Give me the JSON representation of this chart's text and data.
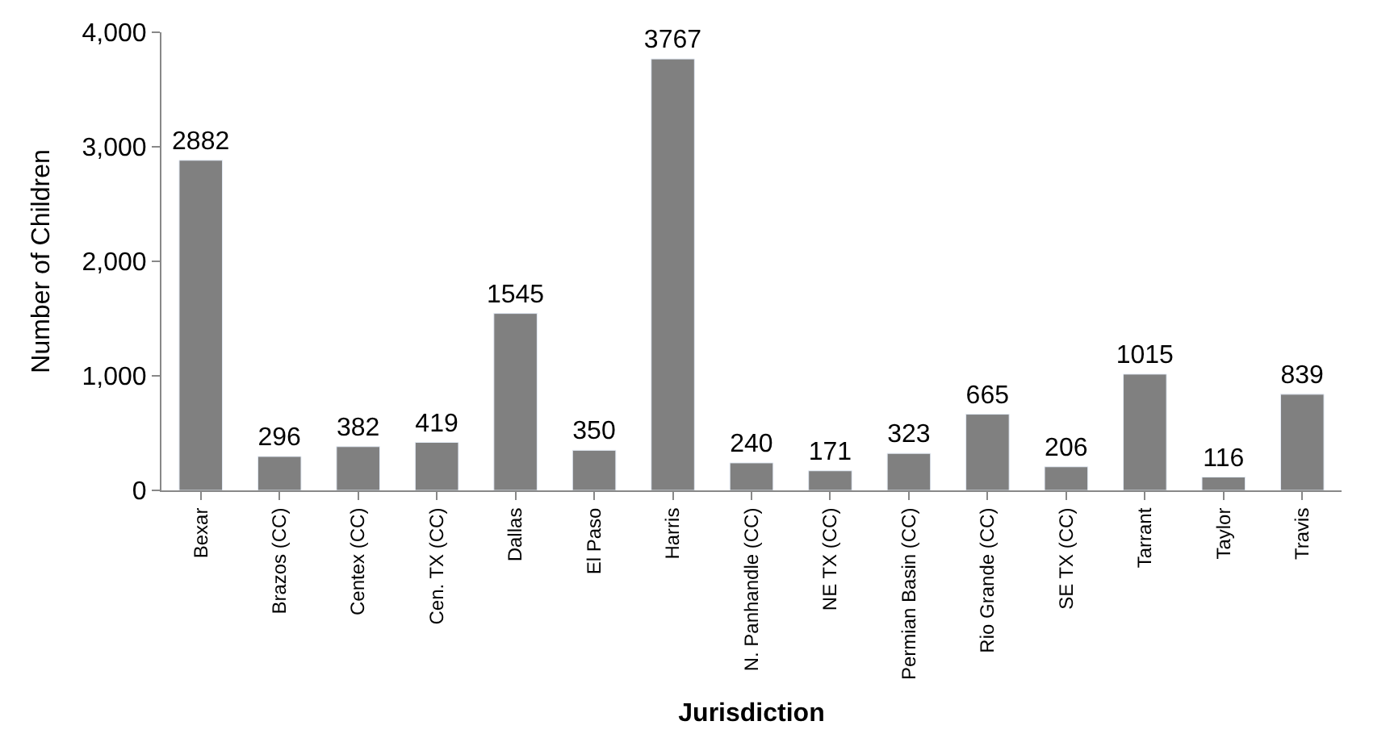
{
  "chart_data": {
    "type": "bar",
    "xlabel": "Jurisdiction",
    "ylabel": "Number of Children",
    "categories": [
      "Bexar",
      "Brazos (CC)",
      "Centex (CC)",
      "Cen. TX (CC)",
      "Dallas",
      "El Paso",
      "Harris",
      "N. Panhandle (CC)",
      "NE TX (CC)",
      "Permian Basin (CC)",
      "Rio Grande (CC)",
      "SE TX (CC)",
      "Tarrant",
      "Taylor",
      "Travis"
    ],
    "values": [
      2882,
      296,
      382,
      419,
      1545,
      350,
      3767,
      240,
      171,
      323,
      665,
      206,
      1015,
      116,
      839
    ],
    "color": "#808080",
    "data_labels": true,
    "ylim": [
      0,
      4000
    ],
    "yticks": [
      0,
      {
        "value": 1000,
        "label": "1,000"
      },
      {
        "value": 2000,
        "label": "2,000"
      },
      {
        "value": 3000,
        "label": "3,000"
      },
      {
        "value": 4000,
        "label": "4,000"
      }
    ]
  }
}
